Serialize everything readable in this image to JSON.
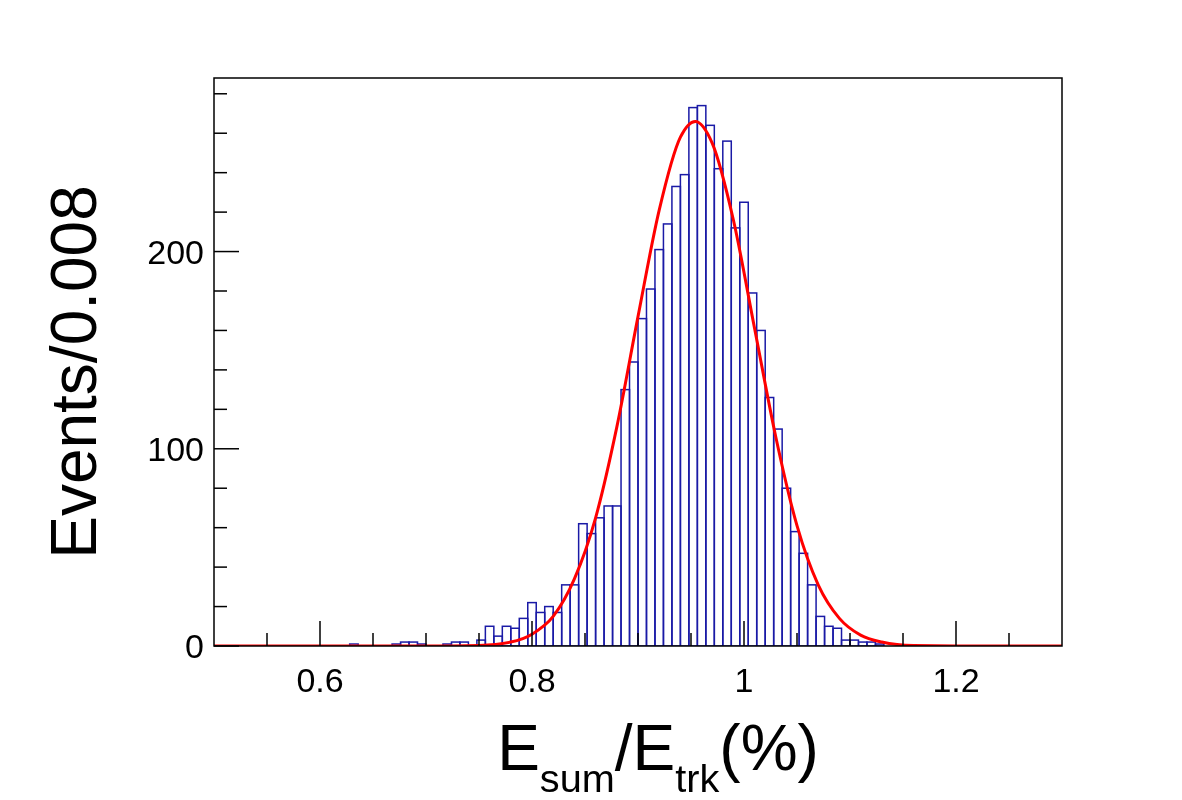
{
  "chart_data": {
    "type": "histogram",
    "xlabel": "E$_{sum}$/E$_{trk}$(%)",
    "ylabel": "Events/0.008",
    "bins": [
      0.5,
      0.508,
      0.516,
      0.524,
      0.532,
      0.54,
      0.548,
      0.556,
      0.564,
      0.572,
      0.58,
      0.588,
      0.596,
      0.604,
      0.612,
      0.62,
      0.628,
      0.636,
      0.644,
      0.652,
      0.66,
      0.668,
      0.676,
      0.684,
      0.692,
      0.7,
      0.708,
      0.716,
      0.724,
      0.732,
      0.74,
      0.748,
      0.756,
      0.764,
      0.772,
      0.78,
      0.788,
      0.796,
      0.804,
      0.812,
      0.82,
      0.828,
      0.836,
      0.844,
      0.852,
      0.86,
      0.868,
      0.876,
      0.884,
      0.892,
      0.9,
      0.908,
      0.916,
      0.924,
      0.932,
      0.94,
      0.948,
      0.956,
      0.964,
      0.972,
      0.98,
      0.988,
      0.996,
      1.004,
      1.012,
      1.02,
      1.028,
      1.036,
      1.044,
      1.052,
      1.06,
      1.068,
      1.076,
      1.084,
      1.092,
      1.1,
      1.108,
      1.116,
      1.124,
      1.132,
      1.14,
      1.148,
      1.156,
      1.164,
      1.172,
      1.18,
      1.188,
      1.196,
      1.204,
      1.212,
      1.22,
      1.228,
      1.236,
      1.244,
      1.252,
      1.26,
      1.268,
      1.276,
      1.284,
      1.292,
      1.3
    ],
    "series": [
      {
        "color": "#1a1aa6",
        "values": [
          0,
          0,
          0,
          0,
          0,
          0,
          0,
          0,
          0,
          0,
          0,
          0,
          0,
          0,
          0,
          0,
          1,
          0,
          0,
          0,
          0,
          1,
          2,
          2,
          1,
          0,
          0,
          1,
          2,
          2,
          0,
          3,
          10,
          5,
          10,
          9,
          14,
          22,
          17,
          20,
          17,
          31,
          31,
          62,
          57,
          65,
          71,
          71,
          130,
          144,
          166,
          181,
          201,
          214,
          233,
          239,
          273,
          274,
          264,
          242,
          256,
          212,
          225,
          179,
          160,
          126,
          110,
          80,
          58,
          47,
          31,
          15,
          10,
          9,
          3,
          3,
          2,
          2,
          1,
          0,
          0,
          0,
          0,
          0,
          0,
          0,
          0,
          0,
          0,
          0,
          0,
          0,
          0,
          0,
          0,
          0,
          0,
          0,
          0,
          0
        ]
      },
      {
        "type": "line",
        "color": "#ff0000",
        "x": [
          0.5,
          0.6,
          0.7,
          0.75,
          0.78,
          0.8,
          0.82,
          0.84,
          0.86,
          0.88,
          0.9,
          0.92,
          0.94,
          0.954,
          0.97,
          0.99,
          1.01,
          1.03,
          1.05,
          1.07,
          1.09,
          1.11,
          1.13,
          1.16,
          1.2,
          1.3
        ],
        "values": [
          0,
          0,
          0,
          0.3,
          2,
          6,
          15,
          34,
          65,
          111,
          167,
          221,
          258,
          266,
          255,
          216,
          161,
          106,
          61,
          31,
          14,
          5.5,
          2,
          0.2,
          0,
          0
        ]
      }
    ],
    "xlim": [
      0.5,
      1.3
    ],
    "xticks": [
      {
        "value": 0.55,
        "label": null
      },
      0.6,
      {
        "value": 0.65,
        "label": null
      },
      {
        "value": 0.7,
        "label": null
      },
      {
        "value": 0.75,
        "label": null
      },
      0.8,
      {
        "value": 0.85,
        "label": null
      },
      {
        "value": 0.9,
        "label": null
      },
      {
        "value": 0.95,
        "label": null
      },
      1,
      {
        "value": 1.05,
        "label": null
      },
      {
        "value": 1.1,
        "label": null
      },
      {
        "value": 1.15,
        "label": null
      },
      1.2,
      {
        "value": 1.25,
        "label": null
      }
    ],
    "ylim": [
      0,
      288
    ],
    "yticks": [
      0,
      {
        "value": 20,
        "label": null
      },
      {
        "value": 40,
        "label": null
      },
      {
        "value": 60,
        "label": null
      },
      {
        "value": 80,
        "label": null
      },
      100,
      {
        "value": 120,
        "label": null
      },
      {
        "value": 140,
        "label": null
      },
      {
        "value": 160,
        "label": null
      },
      {
        "value": 180,
        "label": null
      },
      200,
      {
        "value": 220,
        "label": null
      },
      {
        "value": 240,
        "label": null
      },
      {
        "value": 260,
        "label": null
      },
      {
        "value": 280,
        "label": null
      }
    ],
    "grid": false
  }
}
